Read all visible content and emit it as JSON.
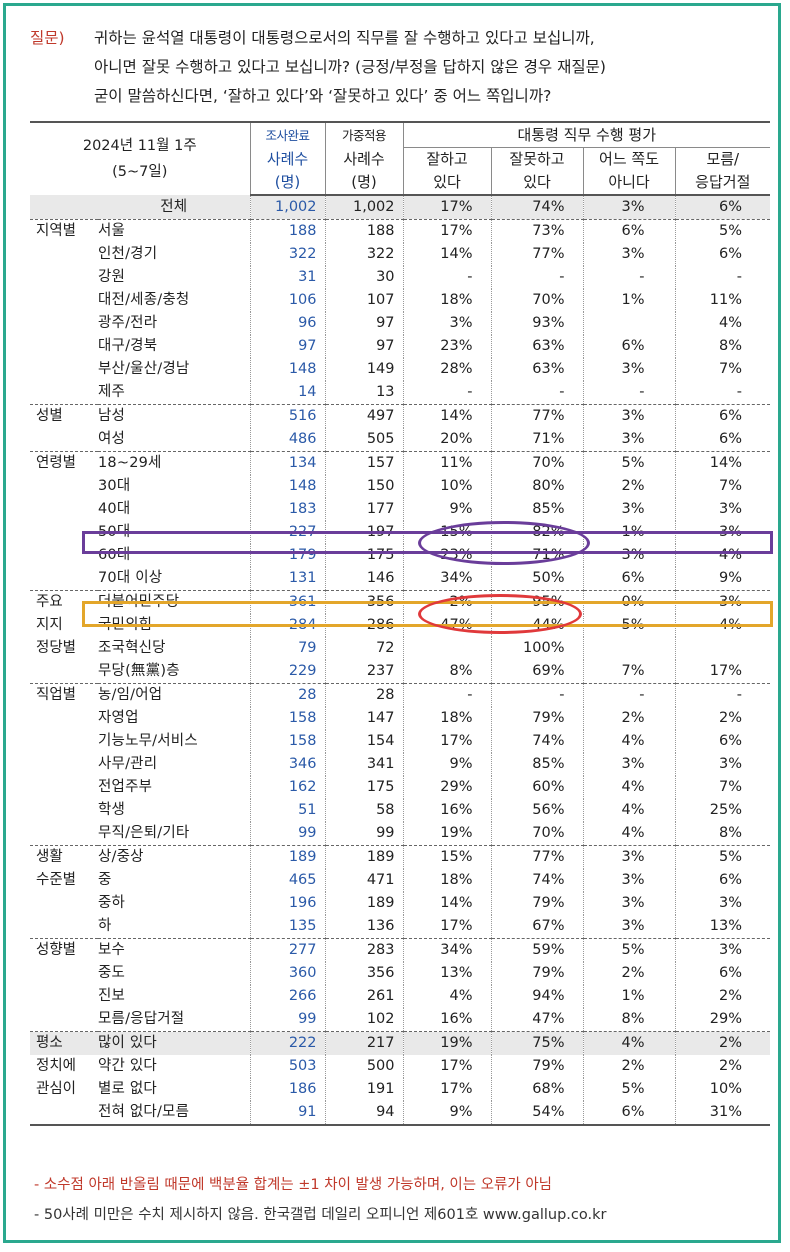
{
  "question": {
    "label": "질문)",
    "lines": [
      "귀하는 윤석열 대통령이 대통령으로서의 직무를 잘 수행하고 있다고 보십니까,",
      "아니면 잘못 수행하고 있다고 보십니까? (긍정/부정을 답하지 않은 경우 재질문)",
      "굳이 말씀하신다면, ‘잘하고 있다’와 ‘잘못하고 있다’ 중 어느 쪽입니까?"
    ]
  },
  "header": {
    "period_line1": "2024년 11월 1주",
    "period_line2": "(5~7일)",
    "col_survey_label": "조사완료",
    "col_weighted_label": "가중적용",
    "col_n_label": "사례수",
    "col_unit_label": "(명)",
    "eval_title": "대통령 직무 수행 평가",
    "col_good_l1": "잘하고",
    "col_good_l2": "있다",
    "col_bad_l1": "잘못하고",
    "col_bad_l2": "있다",
    "col_neither_l1": "어느 쪽도",
    "col_neither_l2": "아니다",
    "col_dk_l1": "모름/",
    "col_dk_l2": "응답거절"
  },
  "rows": [
    {
      "group": "",
      "label": "전체",
      "n1": "1,002",
      "n2": "1,002",
      "good": "17%",
      "bad": "74%",
      "neither": "3%",
      "dk": "6%"
    },
    {
      "group": "지역별",
      "label": "서울",
      "n1": "188",
      "n2": "188",
      "good": "17%",
      "bad": "73%",
      "neither": "6%",
      "dk": "5%"
    },
    {
      "group": "",
      "label": "인천/경기",
      "n1": "322",
      "n2": "322",
      "good": "14%",
      "bad": "77%",
      "neither": "3%",
      "dk": "6%"
    },
    {
      "group": "",
      "label": "강원",
      "n1": "31",
      "n2": "30",
      "good": "-",
      "bad": "-",
      "neither": "-",
      "dk": "-"
    },
    {
      "group": "",
      "label": "대전/세종/충청",
      "n1": "106",
      "n2": "107",
      "good": "18%",
      "bad": "70%",
      "neither": "1%",
      "dk": "11%"
    },
    {
      "group": "",
      "label": "광주/전라",
      "n1": "96",
      "n2": "97",
      "good": "3%",
      "bad": "93%",
      "neither": "",
      "dk": "4%"
    },
    {
      "group": "",
      "label": "대구/경북",
      "n1": "97",
      "n2": "97",
      "good": "23%",
      "bad": "63%",
      "neither": "6%",
      "dk": "8%"
    },
    {
      "group": "",
      "label": "부산/울산/경남",
      "n1": "148",
      "n2": "149",
      "good": "28%",
      "bad": "63%",
      "neither": "3%",
      "dk": "7%"
    },
    {
      "group": "",
      "label": "제주",
      "n1": "14",
      "n2": "13",
      "good": "-",
      "bad": "-",
      "neither": "-",
      "dk": "-"
    },
    {
      "group": "성별",
      "label": "남성",
      "n1": "516",
      "n2": "497",
      "good": "14%",
      "bad": "77%",
      "neither": "3%",
      "dk": "6%"
    },
    {
      "group": "",
      "label": "여성",
      "n1": "486",
      "n2": "505",
      "good": "20%",
      "bad": "71%",
      "neither": "3%",
      "dk": "6%"
    },
    {
      "group": "연령별",
      "label": "18~29세",
      "n1": "134",
      "n2": "157",
      "good": "11%",
      "bad": "70%",
      "neither": "5%",
      "dk": "14%"
    },
    {
      "group": "",
      "label": "30대",
      "n1": "148",
      "n2": "150",
      "good": "10%",
      "bad": "80%",
      "neither": "2%",
      "dk": "7%"
    },
    {
      "group": "",
      "label": "40대",
      "n1": "183",
      "n2": "177",
      "good": "9%",
      "bad": "85%",
      "neither": "3%",
      "dk": "3%"
    },
    {
      "group": "",
      "label": "50대",
      "n1": "227",
      "n2": "197",
      "good": "15%",
      "bad": "82%",
      "neither": "1%",
      "dk": "3%"
    },
    {
      "group": "",
      "label": "60대",
      "n1": "179",
      "n2": "175",
      "good": "23%",
      "bad": "71%",
      "neither": "3%",
      "dk": "4%"
    },
    {
      "group": "",
      "label": "70대 이상",
      "n1": "131",
      "n2": "146",
      "good": "34%",
      "bad": "50%",
      "neither": "6%",
      "dk": "9%"
    },
    {
      "group": "주요",
      "label": "더불어민주당",
      "n1": "361",
      "n2": "356",
      "good": "2%",
      "bad": "95%",
      "neither": "0%",
      "dk": "3%"
    },
    {
      "group": "지지",
      "label": "국민의힘",
      "n1": "284",
      "n2": "286",
      "good": "47%",
      "bad": "44%",
      "neither": "5%",
      "dk": "4%"
    },
    {
      "group": "정당별",
      "label": "조국혁신당",
      "n1": "79",
      "n2": "72",
      "good": "",
      "bad": "100%",
      "neither": "",
      "dk": ""
    },
    {
      "group": "",
      "label": "무당(無黨)층",
      "n1": "229",
      "n2": "237",
      "good": "8%",
      "bad": "69%",
      "neither": "7%",
      "dk": "17%"
    },
    {
      "group": "직업별",
      "label": "농/임/어업",
      "n1": "28",
      "n2": "28",
      "good": "-",
      "bad": "-",
      "neither": "-",
      "dk": "-"
    },
    {
      "group": "",
      "label": "자영업",
      "n1": "158",
      "n2": "147",
      "good": "18%",
      "bad": "79%",
      "neither": "2%",
      "dk": "2%"
    },
    {
      "group": "",
      "label": "기능노무/서비스",
      "n1": "158",
      "n2": "154",
      "good": "17%",
      "bad": "74%",
      "neither": "4%",
      "dk": "6%"
    },
    {
      "group": "",
      "label": "사무/관리",
      "n1": "346",
      "n2": "341",
      "good": "9%",
      "bad": "85%",
      "neither": "3%",
      "dk": "3%"
    },
    {
      "group": "",
      "label": "전업주부",
      "n1": "162",
      "n2": "175",
      "good": "29%",
      "bad": "60%",
      "neither": "4%",
      "dk": "7%"
    },
    {
      "group": "",
      "label": "학생",
      "n1": "51",
      "n2": "58",
      "good": "16%",
      "bad": "56%",
      "neither": "4%",
      "dk": "25%"
    },
    {
      "group": "",
      "label": "무직/은퇴/기타",
      "n1": "99",
      "n2": "99",
      "good": "19%",
      "bad": "70%",
      "neither": "4%",
      "dk": "8%"
    },
    {
      "group": "생활",
      "label": "상/중상",
      "n1": "189",
      "n2": "189",
      "good": "15%",
      "bad": "77%",
      "neither": "3%",
      "dk": "5%"
    },
    {
      "group": "수준별",
      "label": "중",
      "n1": "465",
      "n2": "471",
      "good": "18%",
      "bad": "74%",
      "neither": "3%",
      "dk": "6%"
    },
    {
      "group": "",
      "label": "중하",
      "n1": "196",
      "n2": "189",
      "good": "14%",
      "bad": "79%",
      "neither": "3%",
      "dk": "3%"
    },
    {
      "group": "",
      "label": "하",
      "n1": "135",
      "n2": "136",
      "good": "17%",
      "bad": "67%",
      "neither": "3%",
      "dk": "13%"
    },
    {
      "group": "성향별",
      "label": "보수",
      "n1": "277",
      "n2": "283",
      "good": "34%",
      "bad": "59%",
      "neither": "5%",
      "dk": "3%"
    },
    {
      "group": "",
      "label": "중도",
      "n1": "360",
      "n2": "356",
      "good": "13%",
      "bad": "79%",
      "neither": "2%",
      "dk": "6%"
    },
    {
      "group": "",
      "label": "진보",
      "n1": "266",
      "n2": "261",
      "good": "4%",
      "bad": "94%",
      "neither": "1%",
      "dk": "2%"
    },
    {
      "group": "",
      "label": "모름/응답거절",
      "n1": "99",
      "n2": "102",
      "good": "16%",
      "bad": "47%",
      "neither": "8%",
      "dk": "29%"
    },
    {
      "group": "평소",
      "label": "많이 있다",
      "n1": "222",
      "n2": "217",
      "good": "19%",
      "bad": "75%",
      "neither": "4%",
      "dk": "2%"
    },
    {
      "group": "정치에",
      "label": "약간 있다",
      "n1": "503",
      "n2": "500",
      "good": "17%",
      "bad": "79%",
      "neither": "2%",
      "dk": "2%"
    },
    {
      "group": "관심이",
      "label": "별로 없다",
      "n1": "186",
      "n2": "191",
      "good": "17%",
      "bad": "68%",
      "neither": "5%",
      "dk": "10%"
    },
    {
      "group": "",
      "label": "전혀 없다/모름",
      "n1": "91",
      "n2": "94",
      "good": "9%",
      "bad": "54%",
      "neither": "6%",
      "dk": "31%"
    }
  ],
  "notes": {
    "note1": "- 소수점 아래 반올림 때문에 백분율 합계는 ±1 차이 발생 가능하며, 이는 오류가 아님",
    "note2": "- 50사례 미만은 수치 제시하지 않음. 한국갤럽 데일리 오피니언 제601호 www.gallup.co.kr"
  },
  "colors": {
    "frame": "#2aa88e",
    "question_label": "#c0392b",
    "survey_count": "#2b5aa8",
    "highlight_40s": "#6a3d9a",
    "highlight_70s": "#e3a62a",
    "highlight_70s_ellipse": "#e0393b"
  }
}
